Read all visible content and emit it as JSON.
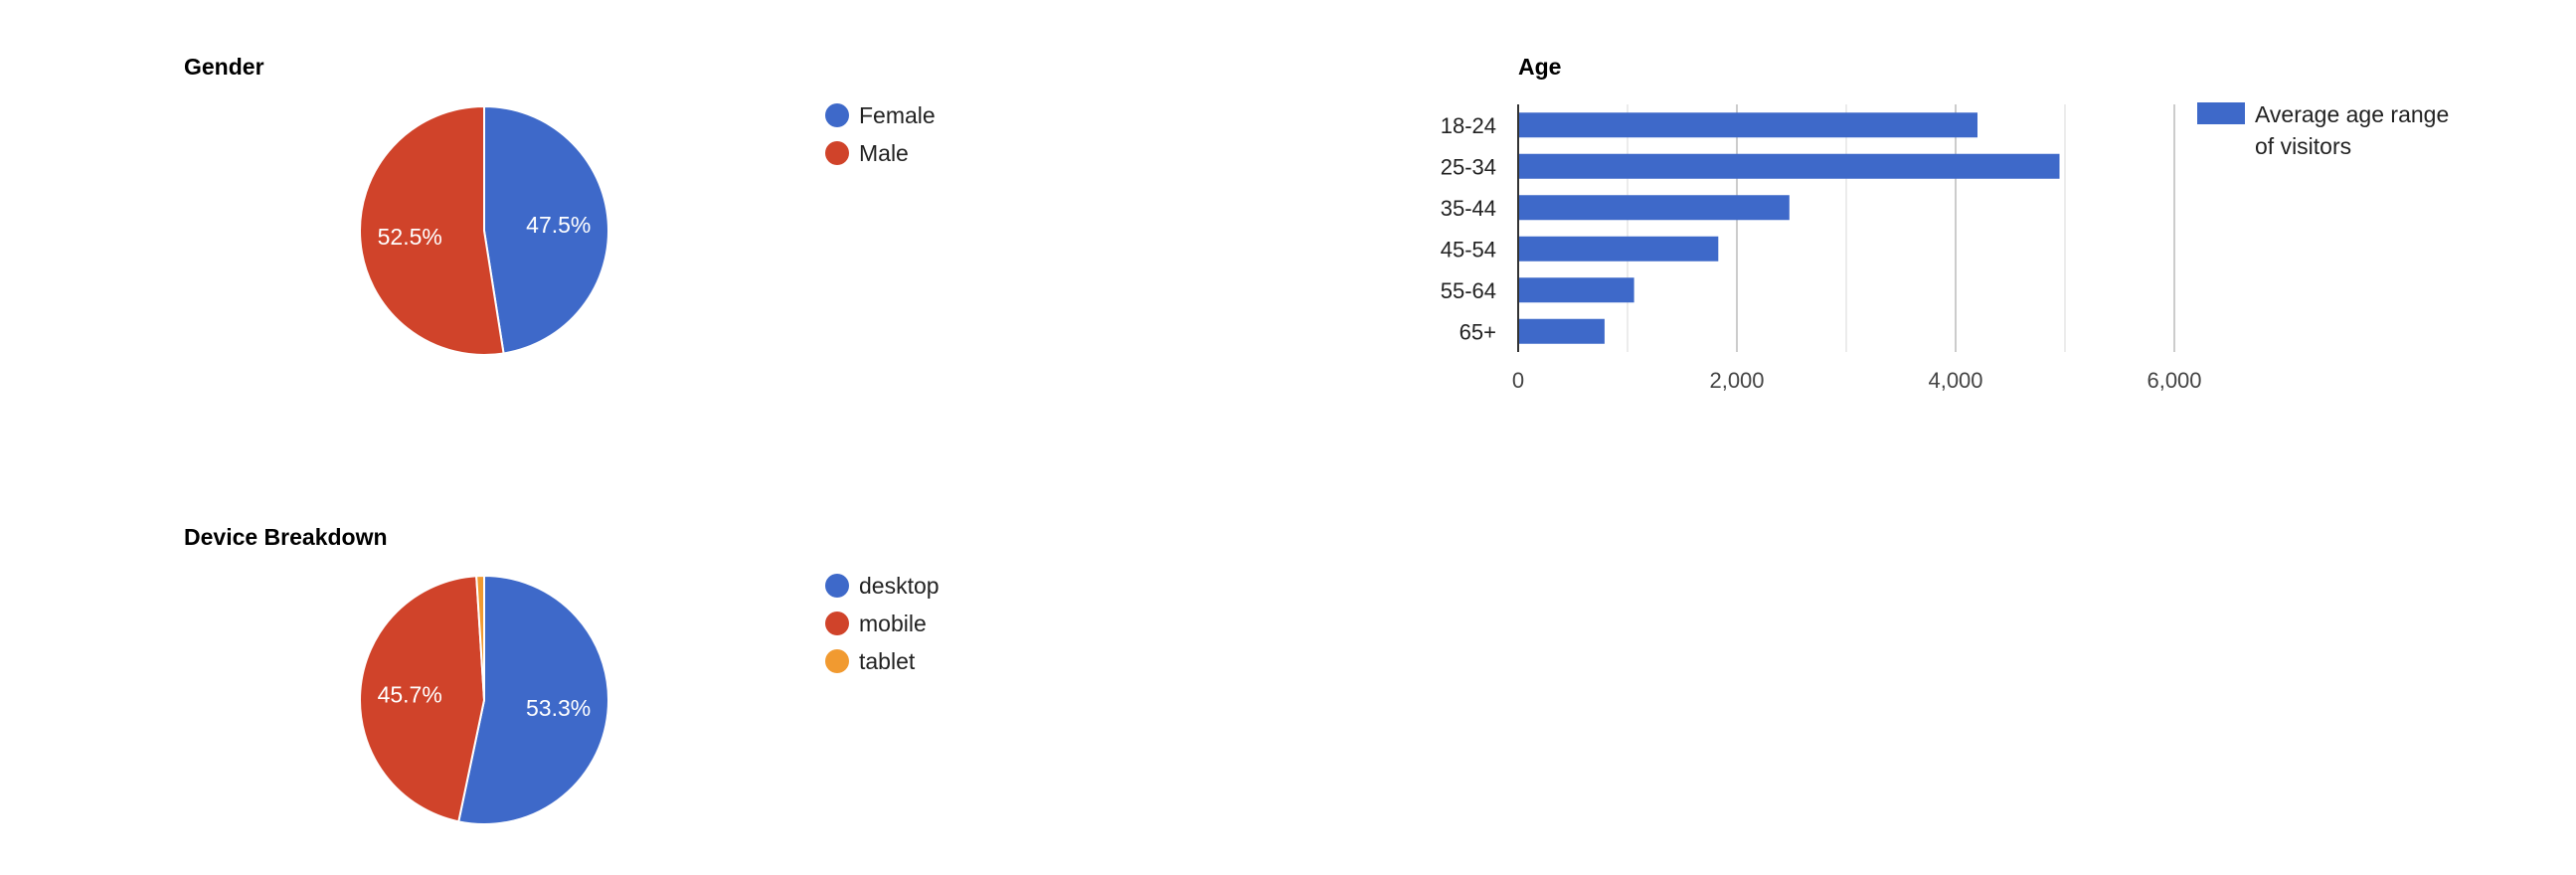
{
  "colors": {
    "blue": "#3e69c9",
    "red": "#d0432a",
    "orange": "#f19a30",
    "grid": "#cccccc",
    "axis": "#333333"
  },
  "chart_data": [
    {
      "type": "pie",
      "title": "Gender",
      "labels": [
        "Female",
        "Male"
      ],
      "values": [
        47.5,
        52.5
      ],
      "slice_labels": [
        "47.5%",
        "52.5%"
      ],
      "colors": [
        "#3e69c9",
        "#d0432a"
      ],
      "legend": "right"
    },
    {
      "type": "bar",
      "orientation": "horizontal",
      "title": "Age",
      "categories": [
        "18-24",
        "25-34",
        "35-44",
        "45-54",
        "55-64",
        "65+"
      ],
      "series": [
        {
          "name": "Average age range of visitors",
          "values": [
            4200,
            4950,
            2480,
            1830,
            1060,
            790
          ]
        }
      ],
      "xlim": [
        0,
        6000
      ],
      "xticks": [
        0,
        2000,
        4000,
        6000
      ],
      "xtick_labels": [
        "0",
        "2,000",
        "4,000",
        "6,000"
      ],
      "grid": true,
      "legend": "right",
      "color": "#3e69c9"
    },
    {
      "type": "pie",
      "title": "Device Breakdown",
      "labels": [
        "desktop",
        "mobile",
        "tablet"
      ],
      "values": [
        53.3,
        45.7,
        1.0
      ],
      "slice_labels": [
        "53.3%",
        "45.7%",
        ""
      ],
      "colors": [
        "#3e69c9",
        "#d0432a",
        "#f19a30"
      ],
      "legend": "right"
    }
  ],
  "legend_text": {
    "age_line1": "Average age range",
    "age_line2": "of visitors"
  }
}
